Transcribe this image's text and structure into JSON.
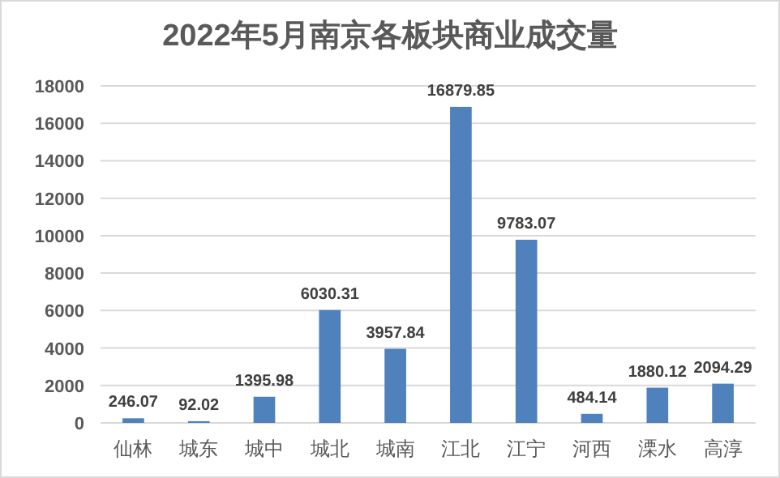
{
  "chart_data": {
    "type": "bar",
    "title": "2022年5月南京各板块商业成交量",
    "categories": [
      "仙林",
      "城东",
      "城中",
      "城北",
      "城南",
      "江北",
      "江宁",
      "河西",
      "溧水",
      "高淳"
    ],
    "values": [
      246.07,
      92.02,
      1395.98,
      6030.31,
      3957.84,
      16879.85,
      9783.07,
      484.14,
      1880.12,
      2094.29
    ],
    "color": "#4f81bd",
    "ylim": [
      0,
      18000
    ],
    "yticks": [
      0,
      2000,
      4000,
      6000,
      8000,
      10000,
      12000,
      14000,
      16000,
      18000
    ],
    "grid": "y",
    "data_labels": true
  }
}
